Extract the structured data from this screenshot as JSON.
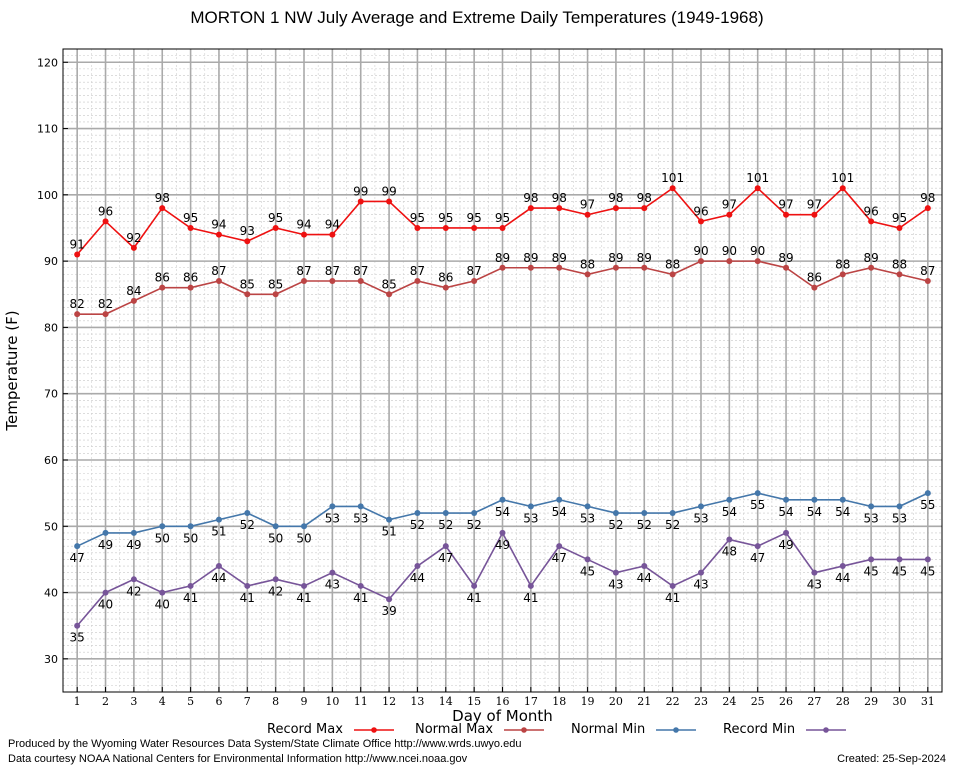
{
  "chart_data": {
    "type": "line",
    "title": "MORTON 1 NW July Average and Extreme Daily Temperatures (1949-1968)",
    "xlabel": "Day of Month",
    "ylabel": "Temperature (F)",
    "ylim": [
      25,
      122
    ],
    "yticks": [
      30,
      40,
      50,
      60,
      70,
      80,
      90,
      100,
      110,
      120
    ],
    "x": [
      1,
      2,
      3,
      4,
      5,
      6,
      7,
      8,
      9,
      10,
      11,
      12,
      13,
      14,
      15,
      16,
      17,
      18,
      19,
      20,
      21,
      22,
      23,
      24,
      25,
      26,
      27,
      28,
      29,
      30,
      31
    ],
    "grid": true,
    "legend_position": "bottom",
    "series": [
      {
        "name": "Record Max",
        "color": "#ee1111",
        "label_pos": "above",
        "values": [
          91,
          96,
          92,
          98,
          95,
          94,
          93,
          95,
          94,
          94,
          99,
          99,
          95,
          95,
          95,
          95,
          98,
          98,
          97,
          98,
          98,
          101,
          96,
          97,
          101,
          97,
          97,
          101,
          96,
          95,
          98
        ]
      },
      {
        "name": "Normal Max",
        "color": "#bb4444",
        "label_pos": "above",
        "values": [
          82,
          82,
          84,
          86,
          86,
          87,
          85,
          85,
          87,
          87,
          87,
          85,
          87,
          86,
          87,
          89,
          89,
          89,
          88,
          89,
          89,
          88,
          90,
          90,
          90,
          89,
          86,
          88,
          89,
          88,
          87
        ]
      },
      {
        "name": "Normal Min",
        "color": "#4477aa",
        "label_pos": "below",
        "values": [
          47,
          49,
          49,
          50,
          50,
          51,
          52,
          50,
          50,
          53,
          53,
          51,
          52,
          52,
          52,
          54,
          53,
          54,
          53,
          52,
          52,
          52,
          53,
          54,
          55,
          54,
          54,
          54,
          53,
          53,
          55
        ]
      },
      {
        "name": "Record Min",
        "color": "#775599",
        "label_pos": "below",
        "values": [
          35,
          40,
          42,
          40,
          41,
          44,
          41,
          42,
          41,
          43,
          41,
          39,
          44,
          47,
          41,
          49,
          41,
          47,
          45,
          43,
          44,
          41,
          43,
          48,
          47,
          49,
          43,
          44,
          45,
          45,
          45
        ]
      }
    ]
  },
  "footer": {
    "line1": "Produced by the Wyoming Water Resources Data System/State Climate Office http://www.wrds.uwyo.edu",
    "line2": "Data courtesy NOAA National Centers for Environmental Information http://www.ncei.noaa.gov",
    "created": "Created:  25-Sep-2024"
  }
}
